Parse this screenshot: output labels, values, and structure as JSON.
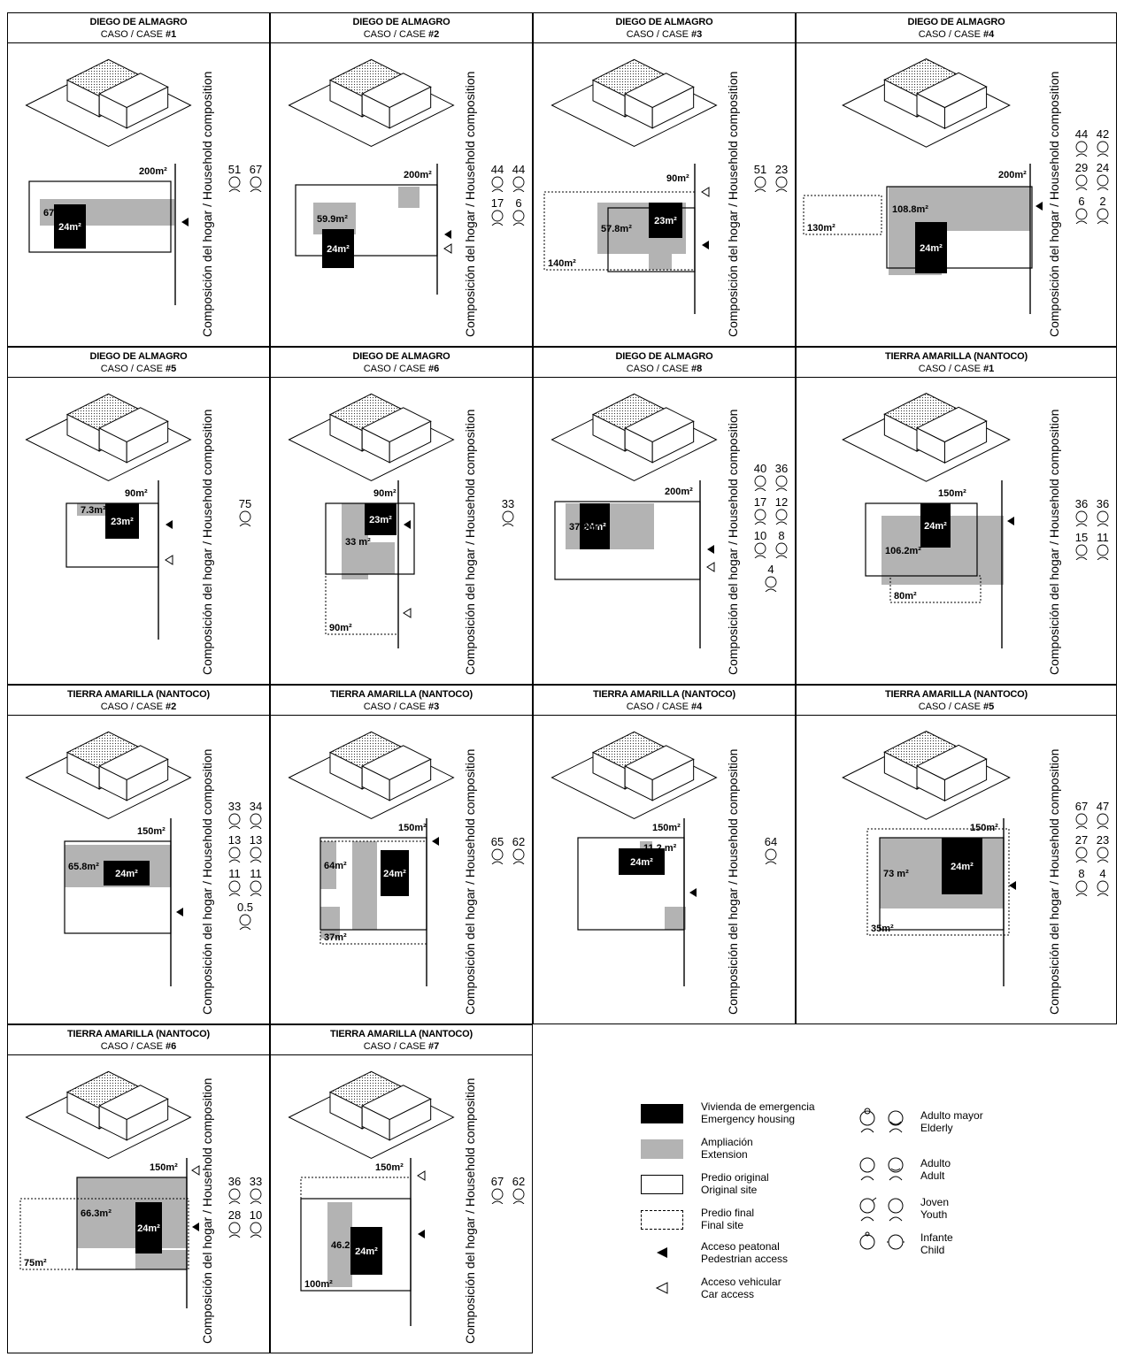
{
  "axis_label": "Composición del hogar / Household composition",
  "case_prefix": "CASO / CASE",
  "cells": [
    {
      "place": "DIEGO DE ALMAGRO",
      "case": "#1",
      "areas": {
        "site": "200m²",
        "emergency": "24m²",
        "extension": "67.8m²"
      },
      "ages": [
        [
          "51",
          "67"
        ]
      ]
    },
    {
      "place": "DIEGO DE ALMAGRO",
      "case": "#2",
      "areas": {
        "site": "200m²",
        "emergency": "24m²",
        "extension": "59.9m²"
      },
      "ages": [
        [
          "44",
          "44"
        ],
        [
          "17",
          "6"
        ]
      ]
    },
    {
      "place": "DIEGO DE ALMAGRO",
      "case": "#3",
      "areas": {
        "site": "90m²",
        "emergency": "23m²",
        "extension": "57.8m²",
        "final": "140m²"
      },
      "ages": [
        [
          "51",
          "23"
        ]
      ]
    },
    {
      "place": "DIEGO DE ALMAGRO",
      "case": "#4",
      "areas": {
        "site": "200m²",
        "emergency": "24m²",
        "extension": "108.8m²",
        "final": "130m²"
      },
      "ages": [
        [
          "44",
          "42"
        ],
        [
          "29",
          "24"
        ],
        [
          "6",
          "2"
        ]
      ]
    },
    {
      "place": "DIEGO DE ALMAGRO",
      "case": "#5",
      "areas": {
        "site": "90m²",
        "emergency": "23m²",
        "extension": "7.3m²"
      },
      "ages": [
        [
          "75"
        ]
      ]
    },
    {
      "place": "DIEGO DE ALMAGRO",
      "case": "#6",
      "areas": {
        "site": "90m²",
        "emergency": "23m²",
        "extension": "33 m²",
        "final": "90m²"
      },
      "ages": [
        [
          "33"
        ]
      ]
    },
    {
      "place": "DIEGO DE ALMAGRO",
      "case": "#8",
      "areas": {
        "site": "200m²",
        "emergency": "24m²",
        "extension": "37.9m²"
      },
      "ages": [
        [
          "40",
          "36"
        ],
        [
          "17",
          "12"
        ],
        [
          "10",
          "8"
        ],
        [
          "4"
        ]
      ]
    },
    {
      "place": "TIERRA AMARILLA (NANTOCO)",
      "case": "#1",
      "areas": {
        "site": "150m²",
        "emergency": "24m²",
        "extension": "106.2m²",
        "final": "80m²"
      },
      "ages": [
        [
          "36",
          "36"
        ],
        [
          "15",
          "11"
        ]
      ]
    },
    {
      "place": "TIERRA AMARILLA (NANTOCO)",
      "case": "#2",
      "areas": {
        "site": "150m²",
        "emergency": "24m²",
        "extension": "65.8m²"
      },
      "ages": [
        [
          "33",
          "34"
        ],
        [
          "13",
          "13"
        ],
        [
          "11",
          "11"
        ],
        [
          "0.5"
        ]
      ]
    },
    {
      "place": "TIERRA AMARILLA (NANTOCO)",
      "case": "#3",
      "areas": {
        "site": "150m²",
        "emergency": "24m²",
        "extension": "64m²",
        "final": "37m²"
      },
      "ages": [
        [
          "65",
          "62"
        ]
      ]
    },
    {
      "place": "TIERRA AMARILLA (NANTOCO)",
      "case": "#4",
      "areas": {
        "site": "150m²",
        "emergency": "24m²",
        "extension": "11.2 m²"
      },
      "ages": [
        [
          "64"
        ]
      ]
    },
    {
      "place": "TIERRA AMARILLA (NANTOCO)",
      "case": "#5",
      "areas": {
        "site": "150m²",
        "emergency": "24m²",
        "extension": "73 m²",
        "final": "35m²"
      },
      "ages": [
        [
          "67",
          "47"
        ],
        [
          "27",
          "23"
        ],
        [
          "8",
          "4"
        ]
      ]
    },
    {
      "place": "TIERRA AMARILLA (NANTOCO)",
      "case": "#6",
      "areas": {
        "site": "150m²",
        "emergency": "24m²",
        "extension": "66.3m²",
        "final": "75m²"
      },
      "ages": [
        [
          "36",
          "33"
        ],
        [
          "28",
          "10"
        ]
      ]
    },
    {
      "place": "TIERRA AMARILLA (NANTOCO)",
      "case": "#7",
      "areas": {
        "site": "150m²",
        "emergency": "24m²",
        "extension": "46.2m²",
        "final": "100m²"
      },
      "ages": [
        [
          "67",
          "62"
        ]
      ]
    }
  ],
  "legend": {
    "emergency": [
      "Vivienda de emergencia",
      "Emergency housing"
    ],
    "extension": [
      "Ampliación",
      "Extension"
    ],
    "original": [
      "Predio original",
      "Original site"
    ],
    "final": [
      "Predio final",
      "Final site"
    ],
    "pedestrian": [
      "Acceso peatonal",
      "Pedestrian access"
    ],
    "car": [
      "Acceso vehicular",
      "Car access"
    ],
    "elderly": [
      "Adulto mayor",
      "Elderly"
    ],
    "adult": [
      "Adulto",
      "Adult"
    ],
    "youth": [
      "Joven",
      "Youth"
    ],
    "child": [
      "Infante",
      "Child"
    ]
  },
  "colors": {
    "emergency": "#000000",
    "extension": "#b3b3b3",
    "line": "#000000"
  }
}
